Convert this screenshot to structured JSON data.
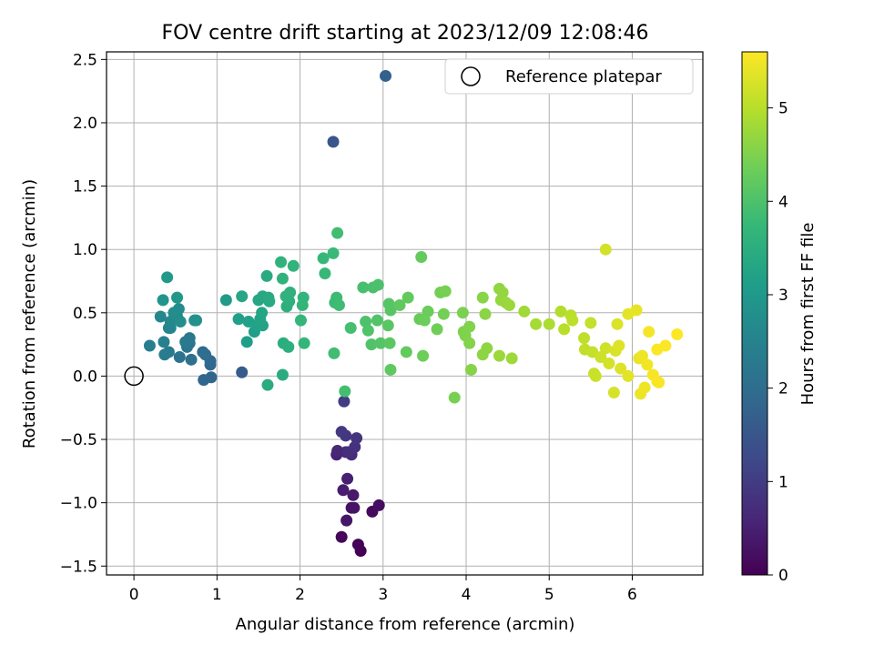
{
  "chart_data": {
    "type": "scatter",
    "title": "FOV centre drift starting at 2023/12/09 12:08:46",
    "xlabel": "Angular distance from reference (arcmin)",
    "ylabel": "Rotation from reference (arcmin)",
    "xlim": [
      -0.33,
      6.85
    ],
    "ylim": [
      -1.57,
      2.56
    ],
    "xticks": [
      "0",
      "1",
      "2",
      "3",
      "4",
      "5",
      "6"
    ],
    "yticks": [
      "−1.5",
      "−1.0",
      "−0.5",
      "0.0",
      "0.5",
      "1.0",
      "1.5",
      "2.0",
      "2.5"
    ],
    "grid": true,
    "legend": {
      "position": "top-right",
      "label": "Reference platepar"
    },
    "reference_point": [
      0,
      0
    ],
    "colorbar": {
      "label": "Hours from first FF file",
      "colormap": "viridis",
      "range": [
        0,
        5.6
      ],
      "ticks": [
        "0",
        "1",
        "2",
        "3",
        "4",
        "5"
      ]
    },
    "points": [
      [
        2.73,
        -1.38,
        0.0
      ],
      [
        2.7,
        -1.33,
        0.05
      ],
      [
        2.5,
        -1.27,
        0.1
      ],
      [
        2.87,
        -1.07,
        0.15
      ],
      [
        2.95,
        -1.02,
        0.2
      ],
      [
        2.62,
        -1.04,
        0.25
      ],
      [
        2.65,
        -1.04,
        0.3
      ],
      [
        2.56,
        -1.14,
        0.35
      ],
      [
        2.64,
        -0.94,
        0.4
      ],
      [
        2.52,
        -0.9,
        0.45
      ],
      [
        2.57,
        -0.81,
        0.5
      ],
      [
        2.44,
        -0.62,
        0.55
      ],
      [
        2.45,
        -0.59,
        0.6
      ],
      [
        2.55,
        -0.6,
        0.65
      ],
      [
        2.62,
        -0.62,
        0.7
      ],
      [
        2.58,
        -0.6,
        0.75
      ],
      [
        2.66,
        -0.56,
        0.8
      ],
      [
        2.68,
        -0.49,
        0.85
      ],
      [
        2.55,
        -0.47,
        0.9
      ],
      [
        2.5,
        -0.44,
        0.95
      ],
      [
        2.53,
        -0.2,
        1.0
      ],
      [
        2.4,
        1.85,
        1.5
      ],
      [
        1.3,
        0.03,
        1.6
      ],
      [
        3.03,
        2.37,
        1.7
      ],
      [
        0.93,
        -0.01,
        1.8
      ],
      [
        0.84,
        -0.03,
        1.85
      ],
      [
        0.92,
        0.09,
        1.9
      ],
      [
        0.92,
        0.12,
        1.92
      ],
      [
        0.83,
        0.19,
        1.95
      ],
      [
        0.86,
        0.17,
        2.0
      ],
      [
        0.69,
        0.13,
        2.05
      ],
      [
        0.55,
        0.15,
        2.1
      ],
      [
        0.67,
        0.26,
        2.15
      ],
      [
        0.64,
        0.23,
        2.2
      ],
      [
        0.67,
        0.3,
        2.25
      ],
      [
        0.62,
        0.27,
        2.28
      ],
      [
        0.42,
        0.19,
        2.3
      ],
      [
        0.37,
        0.17,
        2.35
      ],
      [
        0.19,
        0.24,
        2.4
      ],
      [
        0.36,
        0.27,
        2.45
      ],
      [
        0.42,
        0.38,
        2.5
      ],
      [
        0.44,
        0.38,
        2.55
      ],
      [
        0.32,
        0.47,
        2.6
      ],
      [
        0.44,
        0.43,
        2.62
      ],
      [
        0.52,
        0.47,
        2.65
      ],
      [
        0.54,
        0.53,
        2.7
      ],
      [
        0.48,
        0.5,
        2.72
      ],
      [
        0.56,
        0.43,
        2.75
      ],
      [
        0.73,
        0.44,
        2.8
      ],
      [
        0.75,
        0.44,
        2.85
      ],
      [
        0.35,
        0.6,
        2.9
      ],
      [
        0.52,
        0.62,
        2.95
      ],
      [
        0.4,
        0.78,
        3.0
      ],
      [
        1.11,
        0.6,
        3.05
      ],
      [
        1.36,
        0.27,
        3.1
      ],
      [
        1.45,
        0.35,
        3.12
      ],
      [
        1.26,
        0.45,
        3.15
      ],
      [
        1.38,
        0.43,
        3.18
      ],
      [
        1.48,
        0.4,
        3.2
      ],
      [
        1.55,
        0.4,
        3.22
      ],
      [
        1.52,
        0.45,
        3.25
      ],
      [
        1.54,
        0.5,
        3.28
      ],
      [
        1.3,
        0.63,
        3.3
      ],
      [
        1.5,
        0.6,
        3.32
      ],
      [
        1.55,
        0.63,
        3.35
      ],
      [
        1.62,
        0.62,
        3.38
      ],
      [
        1.63,
        0.59,
        3.4
      ],
      [
        1.6,
        0.79,
        3.42
      ],
      [
        1.61,
        -0.07,
        3.44
      ],
      [
        1.79,
        0.01,
        3.46
      ],
      [
        1.8,
        0.26,
        3.48
      ],
      [
        1.86,
        0.23,
        3.5
      ],
      [
        1.84,
        0.55,
        3.52
      ],
      [
        1.87,
        0.59,
        3.54
      ],
      [
        1.88,
        0.66,
        3.56
      ],
      [
        1.83,
        0.63,
        3.58
      ],
      [
        1.79,
        0.77,
        3.6
      ],
      [
        1.77,
        0.9,
        3.62
      ],
      [
        1.92,
        0.87,
        3.64
      ],
      [
        2.04,
        0.62,
        3.66
      ],
      [
        2.03,
        0.56,
        3.68
      ],
      [
        2.01,
        0.44,
        3.7
      ],
      [
        2.05,
        0.26,
        3.72
      ],
      [
        2.28,
        0.93,
        3.74
      ],
      [
        2.3,
        0.81,
        3.76
      ],
      [
        2.4,
        0.97,
        3.78
      ],
      [
        2.42,
        0.58,
        3.8
      ],
      [
        2.44,
        0.62,
        3.82
      ],
      [
        2.47,
        0.56,
        3.84
      ],
      [
        2.41,
        0.18,
        3.86
      ],
      [
        2.45,
        1.13,
        3.88
      ],
      [
        2.54,
        -0.12,
        3.9
      ],
      [
        2.61,
        0.38,
        3.92
      ],
      [
        2.76,
        0.7,
        3.94
      ],
      [
        2.88,
        0.7,
        3.96
      ],
      [
        2.94,
        0.72,
        3.98
      ],
      [
        2.79,
        0.43,
        4.0
      ],
      [
        2.82,
        0.36,
        4.02
      ],
      [
        2.86,
        0.25,
        4.04
      ],
      [
        2.93,
        0.44,
        4.06
      ],
      [
        2.97,
        0.26,
        4.08
      ],
      [
        3.07,
        0.57,
        4.1
      ],
      [
        3.09,
        0.52,
        4.12
      ],
      [
        3.06,
        0.4,
        4.14
      ],
      [
        3.08,
        0.26,
        4.16
      ],
      [
        3.09,
        0.05,
        4.18
      ],
      [
        3.2,
        0.56,
        4.2
      ],
      [
        3.3,
        0.62,
        4.22
      ],
      [
        3.28,
        0.19,
        4.24
      ],
      [
        3.46,
        0.94,
        4.26
      ],
      [
        3.44,
        0.45,
        4.28
      ],
      [
        3.54,
        0.51,
        4.3
      ],
      [
        3.5,
        0.44,
        4.32
      ],
      [
        3.48,
        0.16,
        4.34
      ],
      [
        3.65,
        0.37,
        4.36
      ],
      [
        3.69,
        0.66,
        4.38
      ],
      [
        3.73,
        0.49,
        4.4
      ],
      [
        3.75,
        0.67,
        4.42
      ],
      [
        3.86,
        -0.17,
        4.44
      ],
      [
        3.96,
        0.5,
        4.46
      ],
      [
        3.97,
        0.35,
        4.48
      ],
      [
        3.99,
        0.32,
        4.5
      ],
      [
        4.04,
        0.39,
        4.52
      ],
      [
        4.04,
        0.26,
        4.54
      ],
      [
        4.06,
        0.05,
        4.56
      ],
      [
        4.2,
        0.62,
        4.58
      ],
      [
        4.23,
        0.49,
        4.6
      ],
      [
        4.2,
        0.17,
        4.62
      ],
      [
        4.25,
        0.22,
        4.64
      ],
      [
        4.4,
        0.69,
        4.66
      ],
      [
        4.44,
        0.66,
        4.68
      ],
      [
        4.42,
        0.6,
        4.7
      ],
      [
        4.48,
        0.58,
        4.72
      ],
      [
        4.52,
        0.56,
        4.74
      ],
      [
        4.4,
        0.16,
        4.76
      ],
      [
        4.55,
        0.14,
        4.78
      ],
      [
        4.7,
        0.51,
        4.8
      ],
      [
        4.84,
        0.41,
        4.85
      ],
      [
        5.0,
        0.41,
        4.9
      ],
      [
        5.14,
        0.51,
        4.95
      ],
      [
        5.18,
        0.37,
        5.0
      ],
      [
        5.26,
        0.48,
        5.02
      ],
      [
        5.28,
        0.44,
        5.04
      ],
      [
        5.42,
        0.3,
        5.06
      ],
      [
        5.43,
        0.21,
        5.08
      ],
      [
        5.5,
        0.42,
        5.1
      ],
      [
        5.52,
        0.19,
        5.12
      ],
      [
        5.54,
        0.02,
        5.14
      ],
      [
        5.56,
        0.0,
        5.16
      ],
      [
        5.62,
        0.15,
        5.18
      ],
      [
        5.68,
        0.22,
        5.2
      ],
      [
        5.68,
        1.0,
        5.22
      ],
      [
        5.72,
        0.1,
        5.24
      ],
      [
        5.78,
        -0.13,
        5.26
      ],
      [
        5.8,
        0.2,
        5.28
      ],
      [
        5.82,
        0.41,
        5.3
      ],
      [
        5.84,
        0.24,
        5.32
      ],
      [
        5.86,
        0.06,
        5.34
      ],
      [
        5.95,
        0.0,
        5.36
      ],
      [
        5.95,
        0.49,
        5.38
      ],
      [
        6.05,
        0.52,
        5.4
      ],
      [
        6.08,
        0.14,
        5.42
      ],
      [
        6.1,
        -0.14,
        5.44
      ],
      [
        6.12,
        0.16,
        5.46
      ],
      [
        6.15,
        -0.09,
        5.48
      ],
      [
        6.18,
        0.09,
        5.5
      ],
      [
        6.2,
        0.35,
        5.52
      ],
      [
        6.25,
        0.01,
        5.54
      ],
      [
        6.3,
        -0.04,
        5.56
      ],
      [
        6.32,
        -0.05,
        5.56
      ],
      [
        6.3,
        0.21,
        5.57
      ],
      [
        6.4,
        0.24,
        5.58
      ],
      [
        6.54,
        0.33,
        5.6
      ]
    ]
  }
}
